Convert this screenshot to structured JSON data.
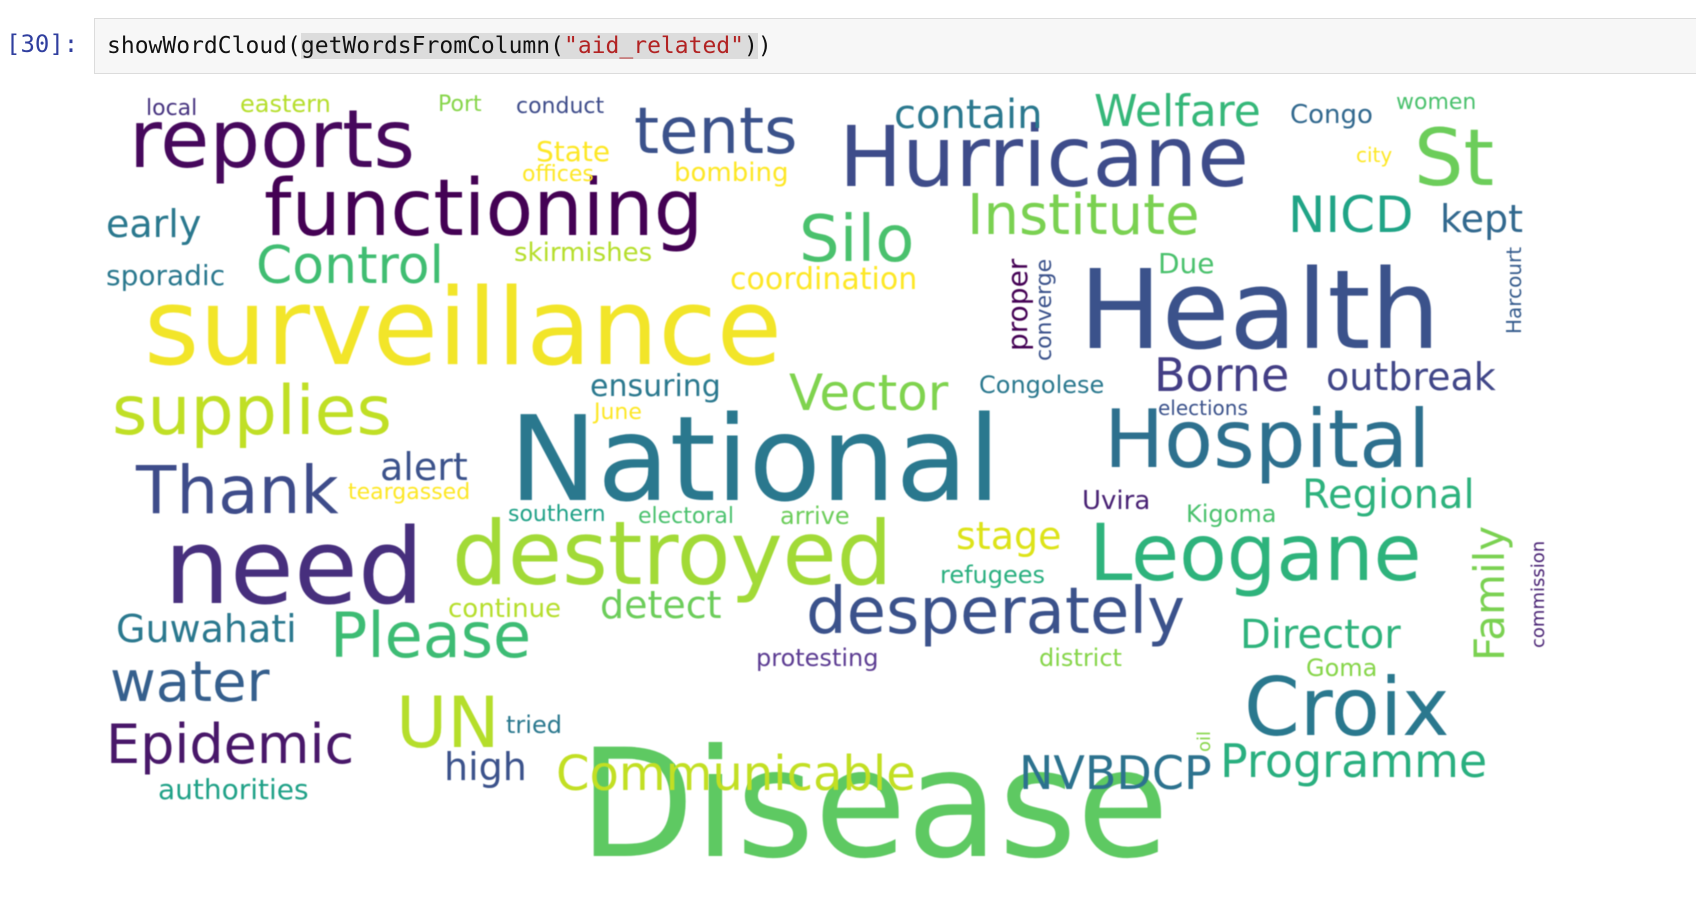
{
  "cell": {
    "prompt": "[30]:",
    "code_function": "showWordCloud",
    "code_paren_open": "(",
    "code_inner_function": "getWordsFromColumn",
    "code_inner_paren_open": "(",
    "code_string": "\"aid_related\"",
    "code_close_inner": ")",
    "code_close_outer": ")"
  },
  "colors": {
    "prompt": "#303f9f",
    "string_literal": "#b22222",
    "highlight": "#dcdcdc",
    "cell_background": "#f7f7f7"
  },
  "wordcloud": {
    "colormap": "viridis",
    "words": [
      {
        "text": "Disease",
        "color": "#5ec962"
      },
      {
        "text": "National",
        "color": "#2a788e"
      },
      {
        "text": "Health",
        "color": "#3b528b"
      },
      {
        "text": "surveillance",
        "color": "#f2e529"
      },
      {
        "text": "need",
        "color": "#472f7d"
      },
      {
        "text": "destroyed",
        "color": "#a2da37"
      },
      {
        "text": "Hurricane",
        "color": "#3e4c8a"
      },
      {
        "text": "functioning",
        "color": "#440154"
      },
      {
        "text": "reports",
        "color": "#46085c"
      },
      {
        "text": "Hospital",
        "color": "#2d708e"
      },
      {
        "text": "Leogane",
        "color": "#2eb37c"
      },
      {
        "text": "Croix",
        "color": "#2a788e"
      },
      {
        "text": "supplies",
        "color": "#c0df25"
      },
      {
        "text": "desperately",
        "color": "#3b528b"
      },
      {
        "text": "UN",
        "color": "#b5de2b"
      },
      {
        "text": "Thank",
        "color": "#3e4c8a"
      },
      {
        "text": "tents",
        "color": "#3b528b"
      },
      {
        "text": "St",
        "color": "#6ccd5a"
      },
      {
        "text": "Silo",
        "color": "#4ac16d"
      },
      {
        "text": "Institute",
        "color": "#7ad151"
      },
      {
        "text": "Please",
        "color": "#3dbc74"
      },
      {
        "text": "water",
        "color": "#355f8d"
      },
      {
        "text": "Epidemic",
        "color": "#481769"
      },
      {
        "text": "Communicable",
        "color": "#c2df23"
      },
      {
        "text": "Programme",
        "color": "#29af7f"
      },
      {
        "text": "NVBDCP",
        "color": "#2c728e"
      },
      {
        "text": "Control",
        "color": "#40bd72"
      },
      {
        "text": "Vector",
        "color": "#7fd34e"
      },
      {
        "text": "NICD",
        "color": "#20a486"
      },
      {
        "text": "Welfare",
        "color": "#35b779"
      },
      {
        "text": "Borne",
        "color": "#433e85"
      },
      {
        "text": "outbreak",
        "color": "#404688"
      },
      {
        "text": "Regional",
        "color": "#2db27d"
      },
      {
        "text": "Director",
        "color": "#2eb37c"
      },
      {
        "text": "Family",
        "color": "#7ad151"
      },
      {
        "text": "contain",
        "color": "#2a788e"
      },
      {
        "text": "early",
        "color": "#2a788e"
      },
      {
        "text": "kept",
        "color": "#31688e"
      },
      {
        "text": "alert",
        "color": "#3b528b"
      },
      {
        "text": "stage",
        "color": "#dde318"
      },
      {
        "text": "detect",
        "color": "#6ccd5a"
      },
      {
        "text": "high",
        "color": "#3b528b"
      },
      {
        "text": "Guwahati",
        "color": "#2a788e"
      },
      {
        "text": "ensuring",
        "color": "#2a788e"
      },
      {
        "text": "coordination",
        "color": "#fde725"
      },
      {
        "text": "skirmishes",
        "color": "#b5de2b"
      },
      {
        "text": "sporadic",
        "color": "#2a788e"
      },
      {
        "text": "refugees",
        "color": "#29af7f"
      },
      {
        "text": "Congolese",
        "color": "#2a788e"
      },
      {
        "text": "proper",
        "color": "#440154"
      },
      {
        "text": "converge",
        "color": "#3b528b"
      },
      {
        "text": "Due",
        "color": "#4ac16d"
      },
      {
        "text": "Harcourt",
        "color": "#365c8d"
      },
      {
        "text": "elections",
        "color": "#3b528b"
      },
      {
        "text": "Kigoma",
        "color": "#4ac16d"
      },
      {
        "text": "Uvira",
        "color": "#482173"
      },
      {
        "text": "commission",
        "color": "#482173"
      },
      {
        "text": "Goma",
        "color": "#86d549"
      },
      {
        "text": "district",
        "color": "#86d549"
      },
      {
        "text": "protesting",
        "color": "#5c3c92"
      },
      {
        "text": "oil",
        "color": "#86d549"
      },
      {
        "text": "tried",
        "color": "#2a788e"
      },
      {
        "text": "authorities",
        "color": "#1fa187"
      },
      {
        "text": "continue",
        "color": "#b5de2b"
      },
      {
        "text": "southern",
        "color": "#1fa187"
      },
      {
        "text": "electoral",
        "color": "#4ac16d"
      },
      {
        "text": "arrive",
        "color": "#6ccd5a"
      },
      {
        "text": "teargassed",
        "color": "#fde725"
      },
      {
        "text": "June",
        "color": "#fde725"
      },
      {
        "text": "local",
        "color": "#46337f"
      },
      {
        "text": "eastern",
        "color": "#b5de2b"
      },
      {
        "text": "Port",
        "color": "#86d549"
      },
      {
        "text": "conduct",
        "color": "#3e4c8a"
      },
      {
        "text": "State",
        "color": "#fde725"
      },
      {
        "text": "offices",
        "color": "#fde725"
      },
      {
        "text": "bombing",
        "color": "#fde725"
      },
      {
        "text": "Congo",
        "color": "#31688e"
      },
      {
        "text": "women",
        "color": "#4ac16d"
      },
      {
        "text": "city",
        "color": "#fde725"
      }
    ]
  }
}
